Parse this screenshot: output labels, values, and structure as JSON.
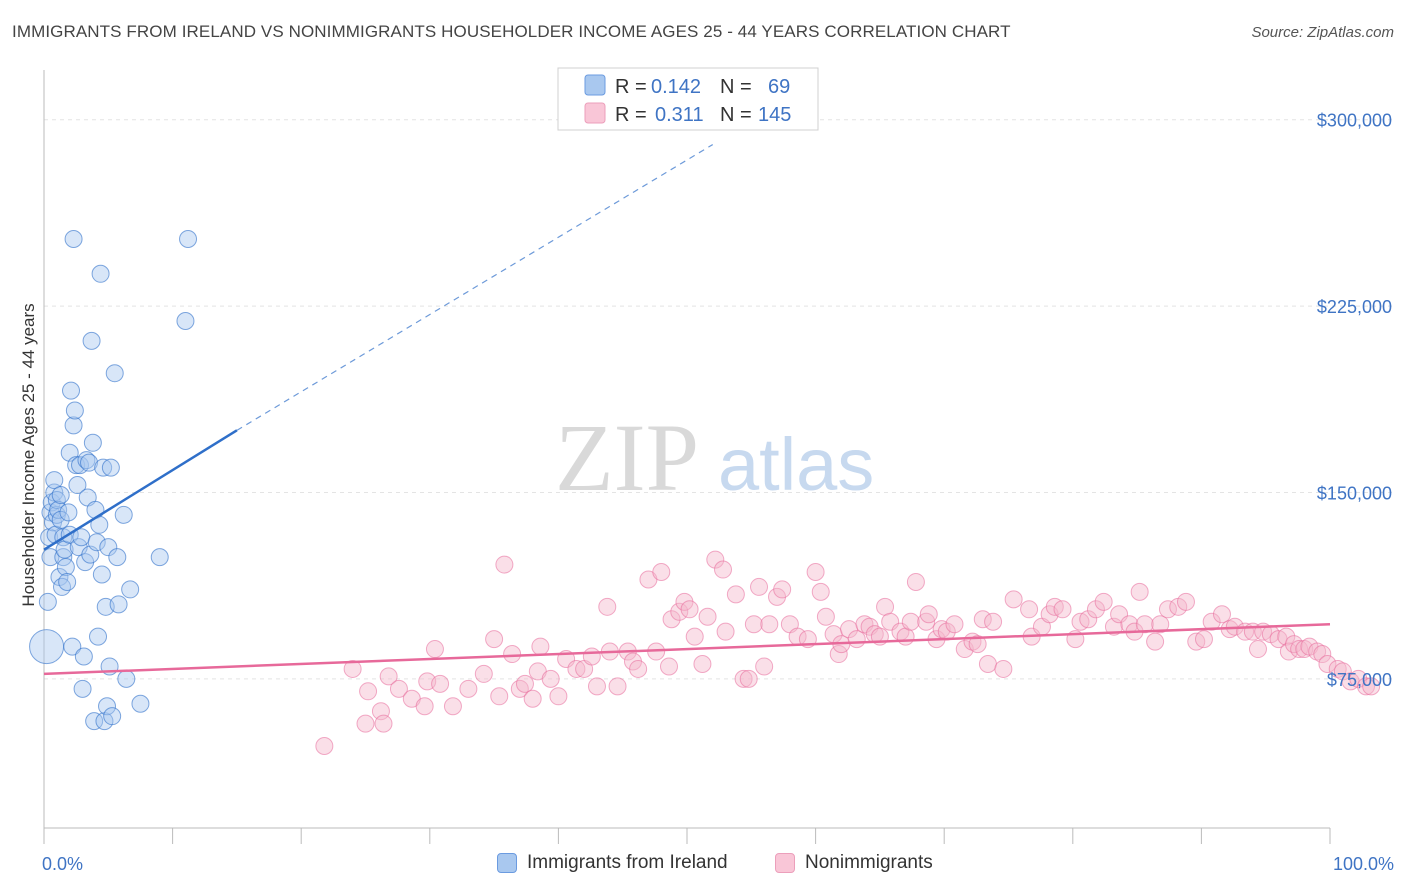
{
  "title": "IMMIGRANTS FROM IRELAND VS NONIMMIGRANTS HOUSEHOLDER INCOME AGES 25 - 44 YEARS CORRELATION CHART",
  "source": "Source: ZipAtlas.com",
  "watermark": {
    "zip": "ZIP",
    "atlas": "atlas"
  },
  "colors": {
    "blue": "#2f6fc9",
    "blue_fill": "#a9c8ef",
    "pink": "#e7699a",
    "pink_fill": "#f4b8cd",
    "tick": "#3f74c4"
  },
  "legend": {
    "r_label": "R =",
    "n_label": "N =",
    "series": [
      {
        "r": "0.142",
        "n": "69"
      },
      {
        "r": "0.311",
        "n": "145"
      }
    ]
  },
  "bottom_legend": [
    "Immigrants from Ireland",
    "Nonimmigrants"
  ],
  "chart_data": {
    "type": "scatter",
    "xlabel": "",
    "ylabel": "Householder Income Ages 25 - 44 years",
    "xlim": [
      0,
      100
    ],
    "ylim": [
      15000,
      320000
    ],
    "x_tick_labels": [
      {
        "value": 0,
        "label": "0.0%"
      },
      {
        "value": 100,
        "label": "100.0%"
      }
    ],
    "y_tick_labels": [
      {
        "value": 75000,
        "label": "$75,000"
      },
      {
        "value": 150000,
        "label": "$150,000"
      },
      {
        "value": 225000,
        "label": "$225,000"
      },
      {
        "value": 300000,
        "label": "$300,000"
      }
    ],
    "grid": true,
    "legend_position": "top-center",
    "series": [
      {
        "name": "Immigrants from Ireland",
        "color": "#2f6fc9",
        "trend": {
          "x0": 0,
          "y0": 127000,
          "x1": 15,
          "y1": 175000,
          "dashed_to_x": 52,
          "dashed_to_y": 290000
        },
        "points": [
          [
            0.2,
            88000
          ],
          [
            0.3,
            106000
          ],
          [
            0.4,
            132000
          ],
          [
            0.5,
            124000
          ],
          [
            0.5,
            142000
          ],
          [
            0.6,
            146000
          ],
          [
            0.7,
            138000
          ],
          [
            0.8,
            150000
          ],
          [
            0.8,
            155000
          ],
          [
            0.9,
            133000
          ],
          [
            1.0,
            141000
          ],
          [
            1.0,
            147000
          ],
          [
            1.1,
            143000
          ],
          [
            1.2,
            116000
          ],
          [
            1.3,
            149000
          ],
          [
            1.3,
            139000
          ],
          [
            1.4,
            112000
          ],
          [
            1.5,
            124000
          ],
          [
            1.5,
            132000
          ],
          [
            1.6,
            127000
          ],
          [
            1.7,
            120000
          ],
          [
            1.8,
            114000
          ],
          [
            1.9,
            142000
          ],
          [
            2.0,
            133000
          ],
          [
            2.0,
            166000
          ],
          [
            2.1,
            191000
          ],
          [
            2.2,
            88000
          ],
          [
            2.3,
            177000
          ],
          [
            2.3,
            252000
          ],
          [
            2.4,
            183000
          ],
          [
            2.5,
            161000
          ],
          [
            2.6,
            153000
          ],
          [
            2.7,
            128000
          ],
          [
            2.8,
            161000
          ],
          [
            2.9,
            132000
          ],
          [
            3.0,
            71000
          ],
          [
            3.1,
            84000
          ],
          [
            3.2,
            122000
          ],
          [
            3.3,
            163000
          ],
          [
            3.4,
            148000
          ],
          [
            3.5,
            162000
          ],
          [
            3.6,
            125000
          ],
          [
            3.7,
            211000
          ],
          [
            3.8,
            170000
          ],
          [
            3.9,
            58000
          ],
          [
            4.0,
            143000
          ],
          [
            4.1,
            130000
          ],
          [
            4.2,
            92000
          ],
          [
            4.3,
            137000
          ],
          [
            4.4,
            238000
          ],
          [
            4.5,
            117000
          ],
          [
            4.6,
            160000
          ],
          [
            4.7,
            58000
          ],
          [
            4.8,
            104000
          ],
          [
            4.9,
            64000
          ],
          [
            5.0,
            128000
          ],
          [
            5.1,
            80000
          ],
          [
            5.2,
            160000
          ],
          [
            5.3,
            60000
          ],
          [
            5.5,
            198000
          ],
          [
            5.7,
            124000
          ],
          [
            5.8,
            105000
          ],
          [
            6.2,
            141000
          ],
          [
            6.4,
            75000
          ],
          [
            6.7,
            111000
          ],
          [
            7.5,
            65000
          ],
          [
            9.0,
            124000
          ],
          [
            11.0,
            219000
          ],
          [
            11.2,
            252000
          ]
        ]
      },
      {
        "name": "Nonimmigrants",
        "color": "#e7699a",
        "trend": {
          "x0": 0,
          "y0": 77000,
          "x1": 100,
          "y1": 97000
        },
        "points": [
          [
            21.8,
            48000
          ],
          [
            24.0,
            79000
          ],
          [
            25.0,
            57000
          ],
          [
            25.2,
            70000
          ],
          [
            26.2,
            62000
          ],
          [
            26.4,
            57000
          ],
          [
            26.8,
            76000
          ],
          [
            27.6,
            71000
          ],
          [
            28.6,
            67000
          ],
          [
            29.6,
            64000
          ],
          [
            29.8,
            74000
          ],
          [
            30.4,
            87000
          ],
          [
            30.8,
            73000
          ],
          [
            31.8,
            64000
          ],
          [
            33.0,
            71000
          ],
          [
            34.2,
            77000
          ],
          [
            35.0,
            91000
          ],
          [
            35.4,
            68000
          ],
          [
            35.8,
            121000
          ],
          [
            36.4,
            85000
          ],
          [
            37.0,
            71000
          ],
          [
            37.4,
            73000
          ],
          [
            38.0,
            67000
          ],
          [
            38.4,
            78000
          ],
          [
            38.6,
            88000
          ],
          [
            39.4,
            75000
          ],
          [
            40.0,
            68000
          ],
          [
            40.6,
            83000
          ],
          [
            41.4,
            79000
          ],
          [
            42.0,
            79000
          ],
          [
            42.6,
            84000
          ],
          [
            43.0,
            72000
          ],
          [
            43.8,
            104000
          ],
          [
            44.0,
            86000
          ],
          [
            44.6,
            72000
          ],
          [
            45.4,
            86000
          ],
          [
            45.8,
            82000
          ],
          [
            46.2,
            79000
          ],
          [
            47.0,
            115000
          ],
          [
            47.6,
            86000
          ],
          [
            48.0,
            118000
          ],
          [
            48.6,
            80000
          ],
          [
            48.8,
            99000
          ],
          [
            49.4,
            102000
          ],
          [
            49.8,
            106000
          ],
          [
            50.2,
            103000
          ],
          [
            50.6,
            92000
          ],
          [
            51.2,
            81000
          ],
          [
            51.6,
            100000
          ],
          [
            52.2,
            123000
          ],
          [
            52.8,
            119000
          ],
          [
            53.0,
            94000
          ],
          [
            53.8,
            109000
          ],
          [
            54.4,
            75000
          ],
          [
            54.8,
            75000
          ],
          [
            55.2,
            97000
          ],
          [
            55.6,
            112000
          ],
          [
            56.0,
            80000
          ],
          [
            56.4,
            97000
          ],
          [
            57.0,
            108000
          ],
          [
            57.4,
            111000
          ],
          [
            58.0,
            97000
          ],
          [
            58.6,
            92000
          ],
          [
            59.4,
            91000
          ],
          [
            60.0,
            118000
          ],
          [
            60.4,
            110000
          ],
          [
            60.8,
            100000
          ],
          [
            61.4,
            93000
          ],
          [
            61.8,
            85000
          ],
          [
            62.0,
            89000
          ],
          [
            62.6,
            95000
          ],
          [
            63.2,
            91000
          ],
          [
            63.8,
            97000
          ],
          [
            64.2,
            96000
          ],
          [
            64.6,
            93000
          ],
          [
            65.0,
            92000
          ],
          [
            65.4,
            104000
          ],
          [
            65.8,
            98000
          ],
          [
            66.6,
            94000
          ],
          [
            67.0,
            92000
          ],
          [
            67.4,
            98000
          ],
          [
            67.8,
            114000
          ],
          [
            68.6,
            98000
          ],
          [
            68.8,
            101000
          ],
          [
            69.4,
            91000
          ],
          [
            69.8,
            95000
          ],
          [
            70.2,
            94000
          ],
          [
            70.8,
            97000
          ],
          [
            71.6,
            87000
          ],
          [
            72.2,
            90000
          ],
          [
            72.6,
            89000
          ],
          [
            73.0,
            99000
          ],
          [
            73.4,
            81000
          ],
          [
            73.8,
            98000
          ],
          [
            74.6,
            79000
          ],
          [
            75.4,
            107000
          ],
          [
            76.6,
            103000
          ],
          [
            76.8,
            92000
          ],
          [
            77.6,
            96000
          ],
          [
            78.2,
            101000
          ],
          [
            78.6,
            104000
          ],
          [
            79.2,
            103000
          ],
          [
            80.2,
            91000
          ],
          [
            80.6,
            98000
          ],
          [
            81.2,
            99000
          ],
          [
            81.8,
            103000
          ],
          [
            82.4,
            106000
          ],
          [
            83.2,
            96000
          ],
          [
            83.6,
            101000
          ],
          [
            84.4,
            97000
          ],
          [
            84.8,
            94000
          ],
          [
            85.2,
            110000
          ],
          [
            85.6,
            97000
          ],
          [
            86.4,
            90000
          ],
          [
            86.8,
            97000
          ],
          [
            87.4,
            103000
          ],
          [
            88.2,
            104000
          ],
          [
            88.8,
            106000
          ],
          [
            89.6,
            90000
          ],
          [
            90.2,
            91000
          ],
          [
            90.8,
            98000
          ],
          [
            91.6,
            101000
          ],
          [
            92.2,
            95000
          ],
          [
            92.6,
            96000
          ],
          [
            93.4,
            94000
          ],
          [
            94.0,
            94000
          ],
          [
            94.4,
            87000
          ],
          [
            94.8,
            94000
          ],
          [
            95.4,
            93000
          ],
          [
            96.0,
            91000
          ],
          [
            96.6,
            92000
          ],
          [
            96.8,
            86000
          ],
          [
            97.2,
            89000
          ],
          [
            97.6,
            87000
          ],
          [
            98.0,
            87000
          ],
          [
            98.4,
            88000
          ],
          [
            99.0,
            86000
          ],
          [
            99.4,
            85000
          ],
          [
            99.8,
            81000
          ],
          [
            100.6,
            79000
          ],
          [
            101.0,
            78000
          ],
          [
            101.6,
            74000
          ],
          [
            102.2,
            75000
          ],
          [
            102.8,
            72000
          ],
          [
            103.2,
            72000
          ]
        ]
      }
    ]
  }
}
